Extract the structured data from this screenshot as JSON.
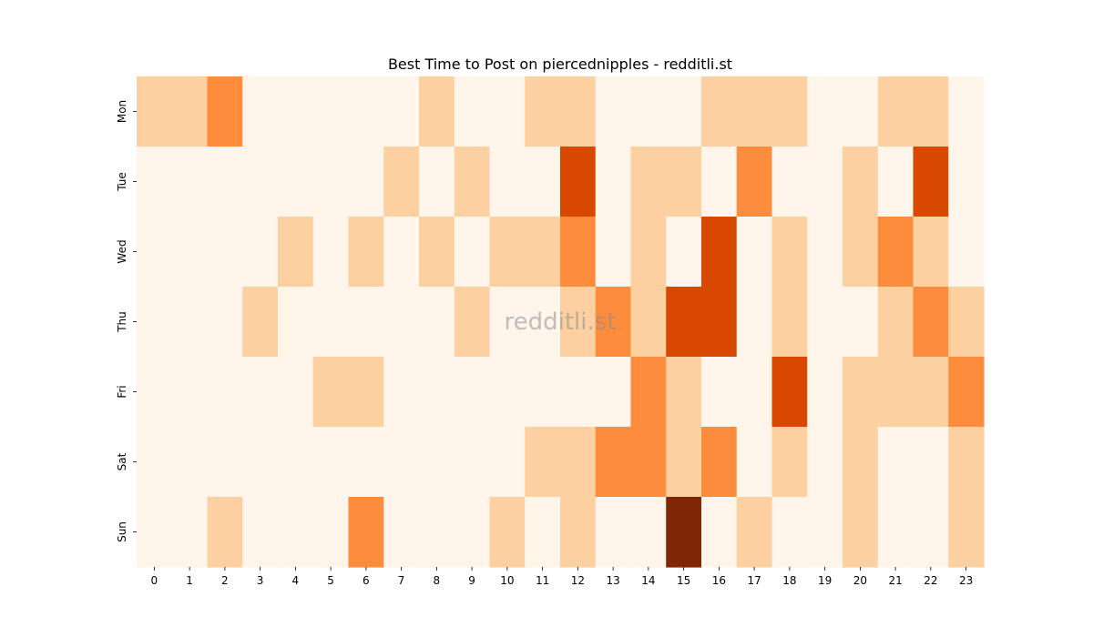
{
  "chart_data": {
    "type": "heatmap",
    "title": "Best Time to Post on piercednipples - redditli.st",
    "watermark": "redditli.st",
    "xlabel": "",
    "ylabel": "",
    "x_categories": [
      "0",
      "1",
      "2",
      "3",
      "4",
      "5",
      "6",
      "7",
      "8",
      "9",
      "10",
      "11",
      "12",
      "13",
      "14",
      "15",
      "16",
      "17",
      "18",
      "19",
      "20",
      "21",
      "22",
      "23"
    ],
    "y_categories": [
      "Mon",
      "Tue",
      "Wed",
      "Thu",
      "Fri",
      "Sat",
      "Sun"
    ],
    "colormap": "Oranges",
    "level_colors": [
      "#fff5eb",
      "#fdd0a2",
      "#fd8d3c",
      "#d94801",
      "#7f2704"
    ],
    "values": [
      [
        1,
        1,
        2,
        0,
        0,
        0,
        0,
        0,
        1,
        0,
        0,
        1,
        1,
        0,
        0,
        0,
        1,
        1,
        1,
        0,
        0,
        1,
        1,
        0
      ],
      [
        0,
        0,
        0,
        0,
        0,
        0,
        0,
        1,
        0,
        1,
        0,
        0,
        3,
        0,
        1,
        1,
        0,
        2,
        0,
        0,
        1,
        0,
        3,
        0
      ],
      [
        0,
        0,
        0,
        0,
        1,
        0,
        1,
        0,
        1,
        0,
        1,
        1,
        2,
        0,
        1,
        0,
        3,
        0,
        1,
        0,
        1,
        2,
        1,
        0
      ],
      [
        0,
        0,
        0,
        1,
        0,
        0,
        0,
        0,
        0,
        1,
        0,
        0,
        1,
        2,
        1,
        3,
        3,
        0,
        1,
        0,
        0,
        1,
        2,
        1
      ],
      [
        0,
        0,
        0,
        0,
        0,
        1,
        1,
        0,
        0,
        0,
        0,
        0,
        0,
        0,
        2,
        1,
        0,
        0,
        3,
        0,
        1,
        1,
        1,
        2
      ],
      [
        0,
        0,
        0,
        0,
        0,
        0,
        0,
        0,
        0,
        0,
        0,
        1,
        1,
        2,
        2,
        1,
        2,
        0,
        1,
        0,
        1,
        0,
        0,
        1
      ],
      [
        0,
        0,
        1,
        0,
        0,
        0,
        2,
        0,
        0,
        0,
        1,
        0,
        1,
        0,
        0,
        4,
        0,
        1,
        0,
        0,
        1,
        0,
        0,
        1
      ]
    ],
    "grid": false,
    "legend": "none"
  }
}
